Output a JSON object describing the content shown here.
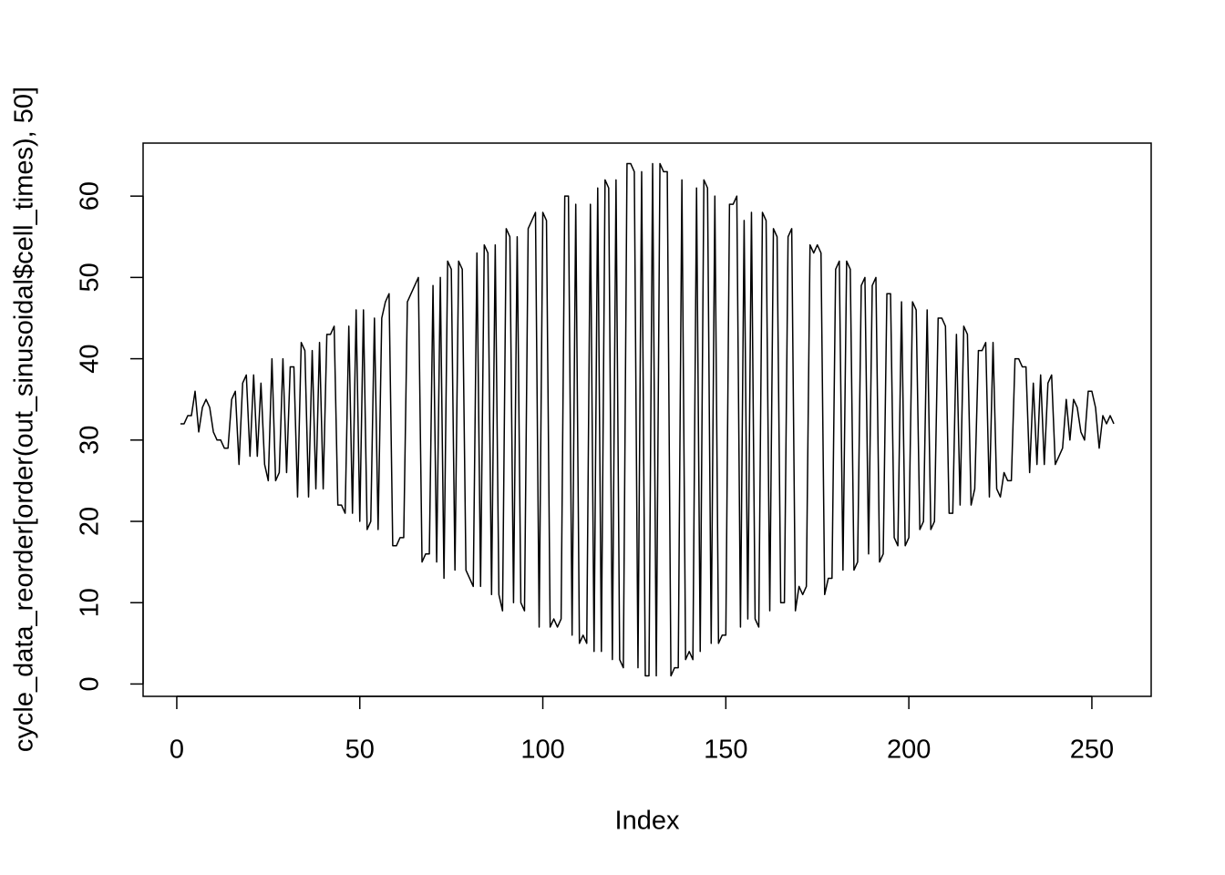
{
  "chart_data": {
    "type": "line",
    "xlabel": "Index",
    "ylabel": "cycle_data_reorder[order(out_sinusoidal$cell_times), 50]",
    "color": "#000000",
    "x": [
      1,
      2,
      3,
      4,
      5,
      6,
      7,
      8,
      9,
      10,
      11,
      12,
      13,
      14,
      15,
      16,
      17,
      18,
      19,
      20,
      21,
      22,
      23,
      24,
      25,
      26,
      27,
      28,
      29,
      30,
      31,
      32,
      33,
      34,
      35,
      36,
      37,
      38,
      39,
      40,
      41,
      42,
      43,
      44,
      45,
      46,
      47,
      48,
      49,
      50,
      51,
      52,
      53,
      54,
      55,
      56,
      57,
      58,
      59,
      60,
      61,
      62,
      63,
      64,
      65,
      66,
      67,
      68,
      69,
      70,
      71,
      72,
      73,
      74,
      75,
      76,
      77,
      78,
      79,
      80,
      81,
      82,
      83,
      84,
      85,
      86,
      87,
      88,
      89,
      90,
      91,
      92,
      93,
      94,
      95,
      96,
      97,
      98,
      99,
      100,
      101,
      102,
      103,
      104,
      105,
      106,
      107,
      108,
      109,
      110,
      111,
      112,
      113,
      114,
      115,
      116,
      117,
      118,
      119,
      120,
      121,
      122,
      123,
      124,
      125,
      126,
      127,
      128,
      129,
      130,
      131,
      132,
      133,
      134,
      135,
      136,
      137,
      138,
      139,
      140,
      141,
      142,
      143,
      144,
      145,
      146,
      147,
      148,
      149,
      150,
      151,
      152,
      153,
      154,
      155,
      156,
      157,
      158,
      159,
      160,
      161,
      162,
      163,
      164,
      165,
      166,
      167,
      168,
      169,
      170,
      171,
      172,
      173,
      174,
      175,
      176,
      177,
      178,
      179,
      180,
      181,
      182,
      183,
      184,
      185,
      186,
      187,
      188,
      189,
      190,
      191,
      192,
      193,
      194,
      195,
      196,
      197,
      198,
      199,
      200,
      201,
      202,
      203,
      204,
      205,
      206,
      207,
      208,
      209,
      210,
      211,
      212,
      213,
      214,
      215,
      216,
      217,
      218,
      219,
      220,
      221,
      222,
      223,
      224,
      225,
      226,
      227,
      228,
      229,
      230,
      231,
      232,
      233,
      234,
      235,
      236,
      237,
      238,
      239,
      240,
      241,
      242,
      243,
      244,
      245,
      246,
      247,
      248,
      249,
      250,
      251,
      252,
      253,
      254,
      255,
      256
    ],
    "values": [
      32,
      32,
      33,
      33,
      36,
      31,
      34,
      35,
      34,
      31,
      30,
      30,
      29,
      29,
      35,
      36,
      27,
      37,
      38,
      28,
      38,
      28,
      37,
      27,
      25,
      40,
      25,
      26,
      40,
      26,
      39,
      39,
      23,
      42,
      41,
      23,
      41,
      24,
      42,
      24,
      43,
      43,
      44,
      22,
      22,
      21,
      44,
      21,
      46,
      20,
      46,
      19,
      20,
      45,
      19,
      45,
      47,
      48,
      17,
      17,
      18,
      18,
      47,
      48,
      49,
      50,
      15,
      16,
      16,
      49,
      15,
      50,
      13,
      52,
      51,
      14,
      52,
      51,
      14,
      13,
      12,
      53,
      12,
      54,
      53,
      11,
      54,
      11,
      9,
      56,
      55,
      10,
      55,
      10,
      9,
      56,
      57,
      58,
      7,
      58,
      57,
      7,
      8,
      7,
      8,
      60,
      60,
      6,
      59,
      5,
      6,
      5,
      59,
      4,
      61,
      4,
      62,
      61,
      3,
      62,
      3,
      2,
      64,
      64,
      63,
      2,
      63,
      1,
      1,
      64,
      1,
      64,
      63,
      63,
      1,
      2,
      2,
      62,
      3,
      4,
      3,
      61,
      4,
      62,
      61,
      5,
      60,
      5,
      6,
      6,
      59,
      59,
      60,
      7,
      57,
      8,
      58,
      8,
      7,
      58,
      57,
      9,
      56,
      55,
      10,
      10,
      55,
      56,
      9,
      12,
      11,
      12,
      54,
      53,
      54,
      53,
      11,
      13,
      13,
      51,
      52,
      14,
      52,
      51,
      14,
      15,
      49,
      50,
      16,
      49,
      50,
      15,
      16,
      48,
      48,
      18,
      17,
      47,
      17,
      18,
      47,
      46,
      19,
      20,
      46,
      19,
      20,
      45,
      45,
      44,
      21,
      21,
      43,
      22,
      44,
      43,
      22,
      24,
      41,
      41,
      42,
      23,
      42,
      24,
      23,
      26,
      25,
      25,
      40,
      40,
      39,
      39,
      26,
      37,
      27,
      38,
      27,
      37,
      38,
      27,
      28,
      29,
      35,
      30,
      35,
      34,
      31,
      30,
      36,
      36,
      34,
      29,
      33,
      32,
      33,
      32
    ],
    "xlim": [
      -9.2,
      266.2
    ],
    "ylim": [
      -1.52,
      66.52
    ],
    "xticks": [
      0,
      50,
      100,
      150,
      200,
      250
    ],
    "yticks": [
      0,
      10,
      20,
      30,
      40,
      50,
      60
    ]
  }
}
